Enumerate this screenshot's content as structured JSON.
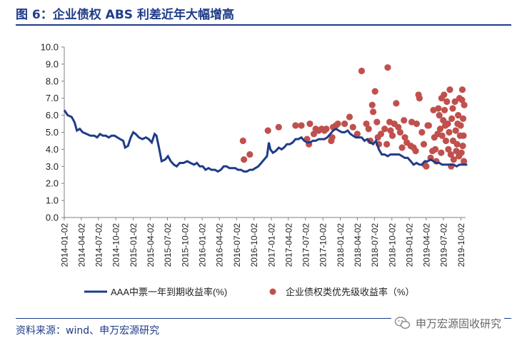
{
  "header": {
    "title": "图 6：企业债权 ABS 利差近年大幅增高"
  },
  "footer": {
    "source": "资料来源：wind、申万宏源研究",
    "brand": "申万宏源固收研究"
  },
  "colors": {
    "line": "#1f3c88",
    "dots": "#c0504d",
    "title": "#1f3c88"
  },
  "chart_data": {
    "type": "line",
    "ylim": [
      0,
      10
    ],
    "yticks": [
      "0.0",
      "1.0",
      "2.0",
      "3.0",
      "4.0",
      "5.0",
      "6.0",
      "7.0",
      "8.0",
      "9.0",
      "10.0"
    ],
    "xlabels": [
      "2014-01-02",
      "2014-04-02",
      "2014-07-02",
      "2014-10-02",
      "2015-01-02",
      "2015-04-02",
      "2015-07-02",
      "2015-10-02",
      "2016-01-02",
      "2016-04-02",
      "2016-07-02",
      "2016-10-02",
      "2017-01-02",
      "2017-04-02",
      "2017-07-02",
      "2017-10-02",
      "2018-01-02",
      "2018-04-02",
      "2018-07-02",
      "2018-10-02",
      "2019-01-02",
      "2019-04-02",
      "2019-07-02",
      "2019-10-02"
    ],
    "legend": {
      "position": "bottom",
      "line_label": "AAA中票一年到期收益率(%)",
      "dots_label": "企业债权类优先级收益率（%）"
    },
    "series": [
      {
        "name": "AAA中票一年到期收益率(%)",
        "kind": "line",
        "points": [
          [
            "2014-01-02",
            6.3
          ],
          [
            "2014-01-20",
            6.0
          ],
          [
            "2014-02-10",
            5.9
          ],
          [
            "2014-02-25",
            5.6
          ],
          [
            "2014-03-10",
            5.1
          ],
          [
            "2014-03-25",
            5.2
          ],
          [
            "2014-04-10",
            5.0
          ],
          [
            "2014-05-01",
            4.9
          ],
          [
            "2014-05-20",
            4.8
          ],
          [
            "2014-06-10",
            4.8
          ],
          [
            "2014-06-25",
            4.7
          ],
          [
            "2014-07-10",
            4.9
          ],
          [
            "2014-07-25",
            4.8
          ],
          [
            "2014-08-10",
            4.8
          ],
          [
            "2014-08-25",
            4.7
          ],
          [
            "2014-09-10",
            4.8
          ],
          [
            "2014-09-25",
            4.8
          ],
          [
            "2014-10-10",
            4.7
          ],
          [
            "2014-10-25",
            4.6
          ],
          [
            "2014-11-10",
            4.5
          ],
          [
            "2014-11-20",
            4.1
          ],
          [
            "2014-12-05",
            4.2
          ],
          [
            "2014-12-20",
            4.7
          ],
          [
            "2015-01-02",
            5.0
          ],
          [
            "2015-01-15",
            4.9
          ],
          [
            "2015-02-01",
            4.7
          ],
          [
            "2015-02-20",
            4.6
          ],
          [
            "2015-03-10",
            4.7
          ],
          [
            "2015-03-25",
            4.6
          ],
          [
            "2015-04-10",
            4.4
          ],
          [
            "2015-04-25",
            4.9
          ],
          [
            "2015-05-05",
            4.8
          ],
          [
            "2015-05-20",
            4.0
          ],
          [
            "2015-06-01",
            3.3
          ],
          [
            "2015-06-20",
            3.4
          ],
          [
            "2015-07-05",
            3.6
          ],
          [
            "2015-07-20",
            3.3
          ],
          [
            "2015-08-05",
            3.1
          ],
          [
            "2015-08-20",
            3.0
          ],
          [
            "2015-09-05",
            3.2
          ],
          [
            "2015-09-25",
            3.2
          ],
          [
            "2015-10-15",
            3.3
          ],
          [
            "2015-11-01",
            3.2
          ],
          [
            "2015-11-20",
            3.1
          ],
          [
            "2015-12-05",
            3.2
          ],
          [
            "2015-12-20",
            3.0
          ],
          [
            "2016-01-05",
            3.0
          ],
          [
            "2016-01-20",
            2.8
          ],
          [
            "2016-02-05",
            2.9
          ],
          [
            "2016-02-20",
            2.8
          ],
          [
            "2016-03-10",
            2.8
          ],
          [
            "2016-03-25",
            2.7
          ],
          [
            "2016-04-10",
            2.8
          ],
          [
            "2016-04-25",
            3.0
          ],
          [
            "2016-05-10",
            3.0
          ],
          [
            "2016-05-25",
            2.9
          ],
          [
            "2016-06-10",
            2.9
          ],
          [
            "2016-06-25",
            2.9
          ],
          [
            "2016-07-10",
            2.8
          ],
          [
            "2016-07-25",
            2.8
          ],
          [
            "2016-08-10",
            2.7
          ],
          [
            "2016-08-25",
            2.7
          ],
          [
            "2016-09-10",
            2.8
          ],
          [
            "2016-09-25",
            2.8
          ],
          [
            "2016-10-10",
            2.9
          ],
          [
            "2016-10-25",
            3.0
          ],
          [
            "2016-11-10",
            3.2
          ],
          [
            "2016-11-25",
            3.4
          ],
          [
            "2016-12-10",
            3.6
          ],
          [
            "2016-12-20",
            4.4
          ],
          [
            "2016-12-28",
            4.0
          ],
          [
            "2017-01-10",
            3.8
          ],
          [
            "2017-01-25",
            3.9
          ],
          [
            "2017-02-10",
            4.1
          ],
          [
            "2017-02-25",
            4.0
          ],
          [
            "2017-03-10",
            4.1
          ],
          [
            "2017-03-25",
            4.3
          ],
          [
            "2017-04-10",
            4.3
          ],
          [
            "2017-04-25",
            4.4
          ],
          [
            "2017-05-10",
            4.6
          ],
          [
            "2017-05-25",
            4.6
          ],
          [
            "2017-06-10",
            4.7
          ],
          [
            "2017-06-25",
            4.5
          ],
          [
            "2017-07-10",
            4.4
          ],
          [
            "2017-07-25",
            4.4
          ],
          [
            "2017-08-10",
            4.5
          ],
          [
            "2017-08-25",
            4.5
          ],
          [
            "2017-09-10",
            4.6
          ],
          [
            "2017-09-25",
            4.6
          ],
          [
            "2017-10-10",
            4.6
          ],
          [
            "2017-10-25",
            4.7
          ],
          [
            "2017-11-10",
            4.9
          ],
          [
            "2017-11-25",
            5.1
          ],
          [
            "2017-12-10",
            5.2
          ],
          [
            "2017-12-25",
            5.1
          ],
          [
            "2018-01-10",
            5.0
          ],
          [
            "2018-01-25",
            5.0
          ],
          [
            "2018-02-10",
            5.1
          ],
          [
            "2018-02-25",
            4.9
          ],
          [
            "2018-03-10",
            4.8
          ],
          [
            "2018-03-25",
            4.7
          ],
          [
            "2018-04-10",
            4.7
          ],
          [
            "2018-04-25",
            4.7
          ],
          [
            "2018-05-10",
            4.5
          ],
          [
            "2018-05-25",
            4.6
          ],
          [
            "2018-06-10",
            4.4
          ],
          [
            "2018-06-25",
            4.3
          ],
          [
            "2018-07-10",
            4.5
          ],
          [
            "2018-07-25",
            4.0
          ],
          [
            "2018-08-10",
            3.7
          ],
          [
            "2018-08-25",
            3.7
          ],
          [
            "2018-09-10",
            3.6
          ],
          [
            "2018-09-25",
            3.7
          ],
          [
            "2018-10-10",
            3.7
          ],
          [
            "2018-10-25",
            3.7
          ],
          [
            "2018-11-10",
            3.7
          ],
          [
            "2018-11-25",
            3.6
          ],
          [
            "2018-12-10",
            3.5
          ],
          [
            "2018-12-25",
            3.5
          ],
          [
            "2019-01-10",
            3.3
          ],
          [
            "2019-01-25",
            3.1
          ],
          [
            "2019-02-10",
            3.2
          ],
          [
            "2019-02-25",
            3.1
          ],
          [
            "2019-03-10",
            3.1
          ],
          [
            "2019-03-25",
            3.3
          ],
          [
            "2019-04-10",
            3.3
          ],
          [
            "2019-04-25",
            3.4
          ],
          [
            "2019-05-10",
            3.3
          ],
          [
            "2019-05-25",
            3.2
          ],
          [
            "2019-06-10",
            3.2
          ],
          [
            "2019-06-25",
            3.1
          ],
          [
            "2019-07-10",
            3.1
          ],
          [
            "2019-07-25",
            3.1
          ],
          [
            "2019-08-10",
            3.1
          ],
          [
            "2019-08-25",
            3.1
          ],
          [
            "2019-09-10",
            3.0
          ],
          [
            "2019-09-25",
            3.1
          ],
          [
            "2019-10-10",
            3.1
          ],
          [
            "2019-10-25",
            3.1
          ],
          [
            "2019-11-05",
            3.1
          ]
        ]
      },
      {
        "name": "企业债权类优先级收益率（%）",
        "kind": "scatter",
        "points": [
          [
            "2016-08-05",
            4.5
          ],
          [
            "2016-08-10",
            3.4
          ],
          [
            "2016-09-10",
            3.7
          ],
          [
            "2016-12-15",
            5.1
          ],
          [
            "2017-02-10",
            5.3
          ],
          [
            "2017-05-10",
            5.4
          ],
          [
            "2017-06-10",
            5.4
          ],
          [
            "2017-07-10",
            4.6
          ],
          [
            "2017-07-25",
            5.5
          ],
          [
            "2017-07-20",
            4.3
          ],
          [
            "2017-08-15",
            4.9
          ],
          [
            "2017-08-25",
            5.2
          ],
          [
            "2017-09-10",
            5.1
          ],
          [
            "2017-09-25",
            5.2
          ],
          [
            "2017-10-10",
            5.1
          ],
          [
            "2017-10-20",
            5.2
          ],
          [
            "2017-11-15",
            4.5
          ],
          [
            "2017-11-20",
            4.7
          ],
          [
            "2017-11-25",
            5.3
          ],
          [
            "2017-12-10",
            5.4
          ],
          [
            "2017-12-20",
            5.5
          ],
          [
            "2018-01-25",
            5.5
          ],
          [
            "2018-02-20",
            5.9
          ],
          [
            "2018-03-10",
            5.3
          ],
          [
            "2018-04-02",
            4.9
          ],
          [
            "2018-04-25",
            8.6
          ],
          [
            "2018-05-20",
            5.5
          ],
          [
            "2018-06-01",
            5.2
          ],
          [
            "2018-06-10",
            4.5
          ],
          [
            "2018-06-20",
            6.6
          ],
          [
            "2018-06-25",
            6.2
          ],
          [
            "2018-07-05",
            7.4
          ],
          [
            "2018-07-15",
            5.6
          ],
          [
            "2018-07-20",
            4.7
          ],
          [
            "2018-07-25",
            4.3
          ],
          [
            "2018-08-05",
            4.9
          ],
          [
            "2018-08-25",
            5.2
          ],
          [
            "2018-09-05",
            4.3
          ],
          [
            "2018-09-10",
            8.8
          ],
          [
            "2018-09-20",
            5.6
          ],
          [
            "2018-09-25",
            5.1
          ],
          [
            "2018-10-05",
            4.8
          ],
          [
            "2018-10-15",
            5.5
          ],
          [
            "2018-10-25",
            6.7
          ],
          [
            "2018-11-05",
            5.3
          ],
          [
            "2018-11-15",
            5.0
          ],
          [
            "2018-11-25",
            4.1
          ],
          [
            "2018-12-05",
            5.7
          ],
          [
            "2018-12-10",
            4.7
          ],
          [
            "2018-12-20",
            4.4
          ],
          [
            "2019-01-10",
            4.2
          ],
          [
            "2019-01-15",
            5.6
          ],
          [
            "2019-01-25",
            4.1
          ],
          [
            "2019-02-05",
            3.9
          ],
          [
            "2019-02-10",
            5.5
          ],
          [
            "2019-02-20",
            7.2
          ],
          [
            "2019-02-25",
            7.0
          ],
          [
            "2019-03-10",
            5.0
          ],
          [
            "2019-03-20",
            4.3
          ],
          [
            "2019-03-25",
            3.1
          ],
          [
            "2019-04-02",
            3.0
          ],
          [
            "2019-04-10",
            5.4
          ],
          [
            "2019-04-15",
            5.4
          ],
          [
            "2019-04-25",
            3.5
          ],
          [
            "2019-05-05",
            3.9
          ],
          [
            "2019-05-10",
            6.3
          ],
          [
            "2019-05-15",
            4.7
          ],
          [
            "2019-05-20",
            4.0
          ],
          [
            "2019-05-25",
            3.3
          ],
          [
            "2019-06-01",
            4.9
          ],
          [
            "2019-06-05",
            6.4
          ],
          [
            "2019-06-10",
            6.0
          ],
          [
            "2019-06-15",
            5.2
          ],
          [
            "2019-06-20",
            3.8
          ],
          [
            "2019-06-22",
            7.0
          ],
          [
            "2019-06-25",
            4.8
          ],
          [
            "2019-07-01",
            5.7
          ],
          [
            "2019-07-05",
            7.2
          ],
          [
            "2019-07-08",
            6.3
          ],
          [
            "2019-07-12",
            5.4
          ],
          [
            "2019-07-15",
            4.5
          ],
          [
            "2019-07-20",
            6.8
          ],
          [
            "2019-07-25",
            5.5
          ],
          [
            "2019-07-28",
            4.0
          ],
          [
            "2019-08-01",
            5.0
          ],
          [
            "2019-08-05",
            7.5
          ],
          [
            "2019-08-10",
            3.7
          ],
          [
            "2019-08-12",
            3.0
          ],
          [
            "2019-08-15",
            5.8
          ],
          [
            "2019-08-20",
            6.4
          ],
          [
            "2019-08-22",
            4.5
          ],
          [
            "2019-08-25",
            3.4
          ],
          [
            "2019-09-01",
            6.8
          ],
          [
            "2019-09-05",
            5.1
          ],
          [
            "2019-09-08",
            3.9
          ],
          [
            "2019-09-12",
            4.3
          ],
          [
            "2019-09-15",
            5.5
          ],
          [
            "2019-09-18",
            6.0
          ],
          [
            "2019-09-22",
            3.6
          ],
          [
            "2019-09-25",
            7.0
          ],
          [
            "2019-09-28",
            4.8
          ],
          [
            "2019-10-01",
            5.4
          ],
          [
            "2019-10-05",
            3.8
          ],
          [
            "2019-10-08",
            6.9
          ],
          [
            "2019-10-10",
            7.5
          ],
          [
            "2019-10-12",
            4.2
          ],
          [
            "2019-10-14",
            5.8
          ],
          [
            "2019-10-16",
            4.8
          ],
          [
            "2019-10-18",
            3.3
          ],
          [
            "2019-10-20",
            6.6
          ]
        ]
      }
    ]
  }
}
